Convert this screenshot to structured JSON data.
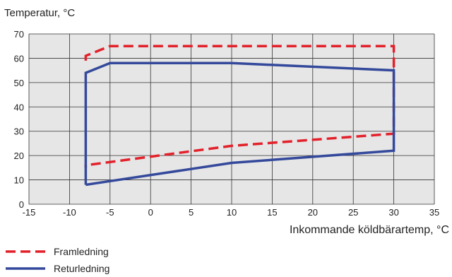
{
  "chart_data": {
    "type": "line",
    "ylabel": "Temperatur, °C",
    "xlabel": "Inkommande köldbärartemp, °C",
    "xlim": [
      -15,
      35
    ],
    "ylim": [
      0,
      70
    ],
    "xticks": [
      -15,
      -10,
      -5,
      0,
      5,
      10,
      15,
      20,
      25,
      30,
      35
    ],
    "yticks": [
      0,
      10,
      20,
      30,
      40,
      50,
      60,
      70
    ],
    "xtick_labels": [
      "-15",
      "-10",
      "-5",
      "0",
      "5",
      "10",
      "15",
      "20",
      "25",
      "30",
      "35"
    ],
    "ytick_labels": [
      "0",
      "10",
      "20",
      "30",
      "40",
      "50",
      "60",
      "70"
    ],
    "grid": true,
    "legend_position": "bottom-left",
    "series": [
      {
        "name": "Framledning",
        "color": "#e3212b",
        "style": "dashed",
        "x": [
          -8,
          -8,
          -5,
          30,
          30,
          10,
          -8,
          -8
        ],
        "y": [
          59,
          61,
          65,
          65,
          29,
          24,
          16,
          15
        ]
      },
      {
        "name": "Returledning",
        "color": "#34499b",
        "style": "solid",
        "x": [
          -8,
          -8,
          -5,
          10,
          30,
          30,
          10,
          -5,
          -8
        ],
        "y": [
          8,
          54,
          58,
          58,
          55,
          22,
          17,
          9.5,
          8
        ]
      }
    ]
  }
}
